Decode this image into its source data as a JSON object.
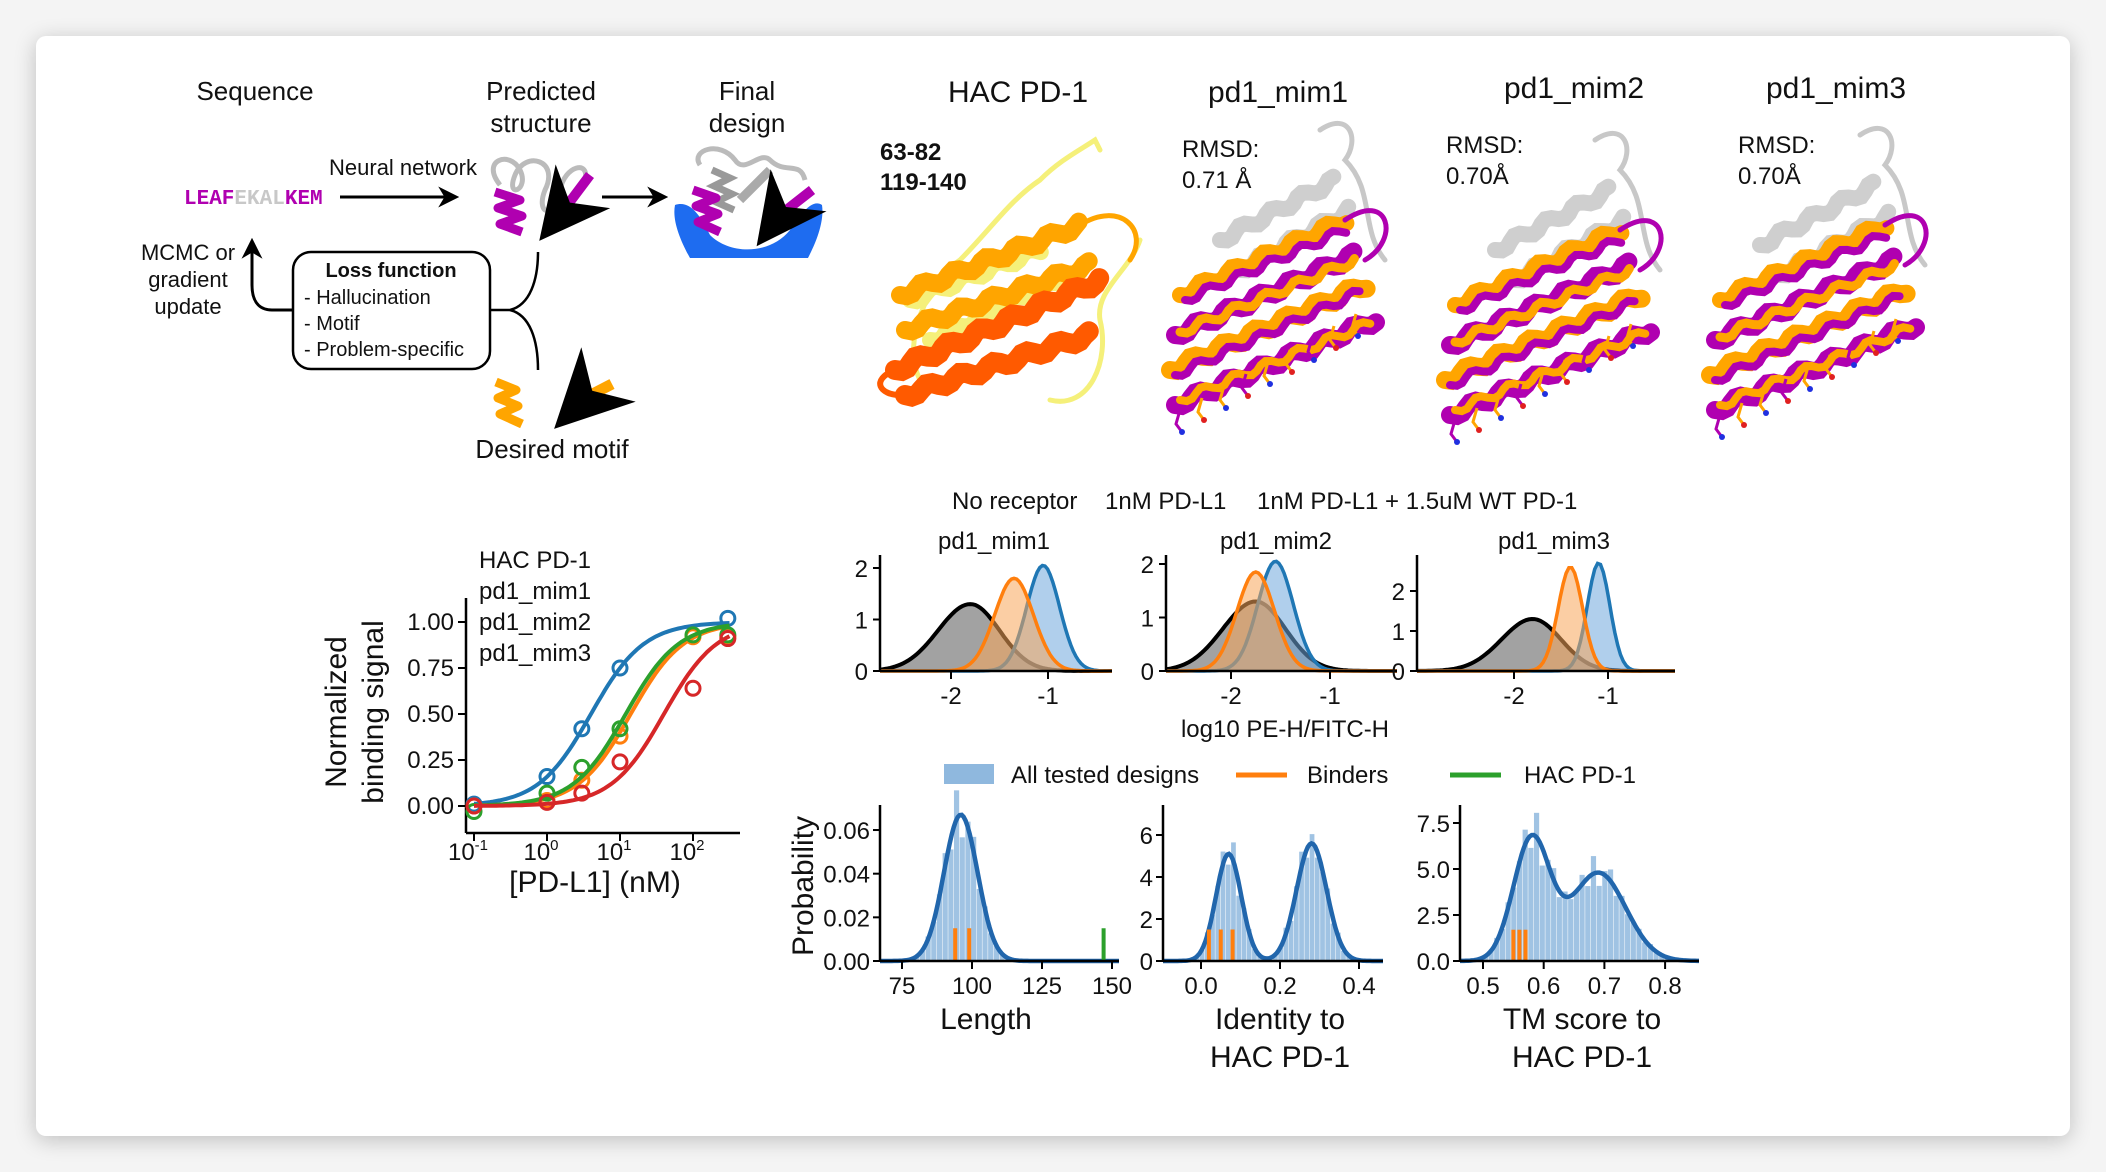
{
  "pipeline": {
    "sequence_label": "Sequence",
    "predicted_label": [
      "Predicted",
      "structure"
    ],
    "final_label": [
      "Final",
      "design"
    ],
    "arrow_label": "Neural network",
    "sequence": [
      {
        "text": "LEAF",
        "color": "#b000b0"
      },
      {
        "text": "EKAL",
        "color": "#c8c8c8"
      },
      {
        "text": "KEM",
        "color": "#b000b0"
      }
    ],
    "update_label": [
      "MCMC or",
      "gradient",
      "update"
    ],
    "loss": {
      "title": "Loss function",
      "items": [
        "- Hallucination",
        "- Motif",
        "- Problem-specific"
      ]
    },
    "motif_label": "Desired motif",
    "colors": {
      "motif": "#ffa500",
      "designed": "#b000b0",
      "target": "#1e6cf0",
      "scaffold": "#bbbbbb"
    }
  },
  "structures": [
    {
      "title": "HAC PD-1",
      "ranges": [
        {
          "text": "63-82",
          "color": "#ff5a00"
        },
        {
          "text": "119-140",
          "color": "#ffa500"
        }
      ]
    },
    {
      "title": "pd1_mim1",
      "rmsd_label": "RMSD:",
      "rmsd": "0.71 Å"
    },
    {
      "title": "pd1_mim2",
      "rmsd_label": "RMSD:",
      "rmsd": "0.70Å"
    },
    {
      "title": "pd1_mim3",
      "rmsd_label": "RMSD:",
      "rmsd": "0.70Å"
    }
  ],
  "chart_data": [
    {
      "type": "line",
      "scale": "log-x",
      "xlabel": "[PD-L1] (nM)",
      "ylabel": [
        "Normalized",
        "binding signal"
      ],
      "x_ticks": {
        "base": "10",
        "exponents": [
          "-1",
          "0",
          "1",
          "2"
        ]
      },
      "y_ticks": [
        "0.00",
        "0.25",
        "0.50",
        "0.75",
        "1.00"
      ],
      "legend_placement": "top-left",
      "series": [
        {
          "name": "HAC PD-1",
          "color": "#1f77b4",
          "fit_ec50": 4,
          "points": [
            [
              0.1,
              0.01
            ],
            [
              1,
              0.16
            ],
            [
              3,
              0.42
            ],
            [
              10,
              0.75
            ],
            [
              300,
              1.02
            ]
          ]
        },
        {
          "name": "pd1_mim1",
          "color": "#ff7f0e",
          "fit_ec50": 14,
          "points": [
            [
              0.1,
              0.0
            ],
            [
              1,
              0.03
            ],
            [
              3,
              0.14
            ],
            [
              10,
              0.38
            ],
            [
              100,
              0.92
            ],
            [
              300,
              0.92
            ]
          ]
        },
        {
          "name": "pd1_mim2",
          "color": "#2ca02c",
          "fit_ec50": 12,
          "points": [
            [
              0.1,
              -0.03
            ],
            [
              1,
              0.07
            ],
            [
              3,
              0.21
            ],
            [
              10,
              0.42
            ],
            [
              100,
              0.93
            ],
            [
              300,
              0.93
            ]
          ]
        },
        {
          "name": "pd1_mim3",
          "color": "#d62728",
          "fit_ec50": 40,
          "points": [
            [
              0.1,
              0.0
            ],
            [
              1,
              0.02
            ],
            [
              3,
              0.07
            ],
            [
              10,
              0.24
            ],
            [
              100,
              0.64
            ],
            [
              300,
              0.91
            ]
          ]
        }
      ]
    },
    {
      "type": "area",
      "xlabel": "log10 PE-H/FITC-H",
      "legend": [
        {
          "name": "No receptor",
          "color": "#000000",
          "fill": "#555555"
        },
        {
          "name": "1nM PD-L1",
          "color": "#1f77b4",
          "fill": "#6fa8dc"
        },
        {
          "name": "1nM PD-L1 + 1.5uM WT PD-1",
          "color": "#ff7f0e",
          "fill": "#f7a55a"
        }
      ],
      "panels": [
        {
          "title": "pd1_mim1",
          "x_ticks": [
            "-2",
            "-1"
          ],
          "y_ticks": [
            "0",
            "1",
            "2"
          ],
          "series": [
            {
              "peak": -1.8,
              "density": 1.3,
              "spread": 0.3
            },
            {
              "peak": -1.05,
              "density": 2.05,
              "spread": 0.17
            },
            {
              "peak": -1.35,
              "density": 1.8,
              "spread": 0.2
            }
          ]
        },
        {
          "title": "pd1_mim2",
          "x_ticks": [
            "-2",
            "-1"
          ],
          "y_ticks": [
            "0",
            "1",
            "2"
          ],
          "series": [
            {
              "peak": -1.75,
              "density": 1.3,
              "spread": 0.3
            },
            {
              "peak": -1.55,
              "density": 2.05,
              "spread": 0.18
            },
            {
              "peak": -1.75,
              "density": 1.85,
              "spread": 0.19
            }
          ]
        },
        {
          "title": "pd1_mim3",
          "x_ticks": [
            "-2",
            "-1"
          ],
          "y_ticks": [
            "0",
            "1",
            "2"
          ],
          "series": [
            {
              "peak": -1.8,
              "density": 1.3,
              "spread": 0.3
            },
            {
              "peak": -1.1,
              "density": 2.7,
              "spread": 0.12
            },
            {
              "peak": -1.4,
              "density": 2.6,
              "spread": 0.13
            }
          ]
        }
      ]
    },
    {
      "type": "bar",
      "ylabel": "Probability",
      "legend": [
        {
          "name": "All tested designs",
          "color": "#8fb8de"
        },
        {
          "name": "Binders",
          "color": "#ff7f0e"
        },
        {
          "name": "HAC PD-1",
          "color": "#2ca02c"
        }
      ],
      "kde_color": "#2166ac",
      "panels": [
        {
          "xlabel": [
            "Length"
          ],
          "x_ticks": [
            "75",
            "100",
            "125",
            "150"
          ],
          "y_ticks": [
            "0.00",
            "0.02",
            "0.04",
            "0.06"
          ],
          "kde": [
            {
              "x": 96,
              "density": 0.067,
              "spread": 6
            }
          ],
          "binders": [
            94,
            99
          ],
          "reference": 147
        },
        {
          "xlabel": [
            "Identity to",
            "HAC PD-1"
          ],
          "x_ticks": [
            "0.0",
            "0.2",
            "0.4"
          ],
          "y_ticks": [
            "0",
            "2",
            "4",
            "6"
          ],
          "kde": [
            {
              "x": 0.07,
              "density": 5.1,
              "spread": 0.032
            },
            {
              "x": 0.28,
              "density": 5.6,
              "spread": 0.038
            }
          ],
          "binders": [
            0.02,
            0.05,
            0.08
          ]
        },
        {
          "xlabel": [
            "TM score to",
            "HAC PD-1"
          ],
          "x_ticks": [
            "0.5",
            "0.6",
            "0.7",
            "0.8"
          ],
          "y_ticks": [
            "0.0",
            "2.5",
            "5.0",
            "7.5"
          ],
          "kde": [
            {
              "x": 0.58,
              "density": 6.6,
              "spread": 0.03
            },
            {
              "x": 0.69,
              "density": 4.8,
              "spread": 0.045
            }
          ],
          "binders": [
            0.55,
            0.56,
            0.57
          ]
        }
      ]
    }
  ]
}
